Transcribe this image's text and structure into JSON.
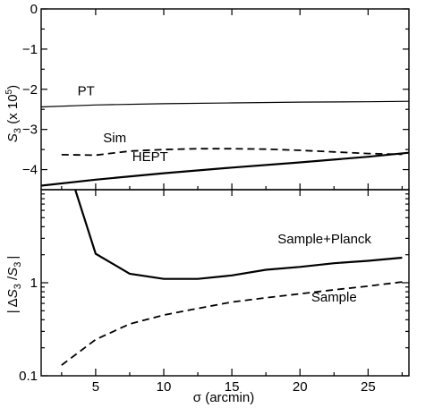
{
  "chart_data": [
    {
      "type": "line",
      "xlim": [
        1,
        28
      ],
      "ylim": [
        -4.5,
        0
      ],
      "ylabel": "S3 (x 10^5)",
      "ylabel_main": "S",
      "ylabel_sub": "3",
      "ylabel_rest": " (x 10",
      "ylabel_exp": "5",
      "ylabel_close": ")",
      "yticks": [
        0,
        -1,
        -2,
        -3,
        -4
      ],
      "ytick_labels": [
        "0",
        "−1",
        "−2",
        "−3",
        "−4"
      ],
      "series": [
        {
          "name": "PT",
          "style": "thin-solid",
          "x": [
            1,
            5,
            10,
            15,
            20,
            25,
            28
          ],
          "y": [
            -2.44,
            -2.39,
            -2.36,
            -2.34,
            -2.32,
            -2.31,
            -2.3
          ]
        },
        {
          "name": "Sim",
          "style": "dashed",
          "x": [
            2.5,
            5,
            7.5,
            10,
            12.5,
            15,
            17.5,
            20,
            22.5,
            25,
            27.5
          ],
          "y": [
            -3.63,
            -3.64,
            -3.54,
            -3.5,
            -3.48,
            -3.48,
            -3.49,
            -3.52,
            -3.56,
            -3.6,
            -3.62
          ]
        },
        {
          "name": "HEPT",
          "style": "thick-solid",
          "x": [
            1,
            5,
            10,
            15,
            20,
            25,
            28
          ],
          "y": [
            -4.4,
            -4.25,
            -4.09,
            -3.95,
            -3.82,
            -3.68,
            -3.58
          ]
        }
      ]
    },
    {
      "type": "line",
      "xlim": [
        1,
        28
      ],
      "ylim": [
        0.1,
        10
      ],
      "yscale": "log",
      "xlabel": "σ (arcmin)",
      "ylabel": "|ΔS3 /S3|",
      "xticks": [
        5,
        10,
        15,
        20,
        25
      ],
      "xtick_labels": [
        "5",
        "10",
        "15",
        "20",
        "25"
      ],
      "yticks": [
        0.1,
        1
      ],
      "ytick_labels": [
        "0.1",
        "1"
      ],
      "series": [
        {
          "name": "Sample+Planck",
          "style": "thick-solid",
          "x": [
            3.5,
            5,
            7.5,
            10,
            12.5,
            15,
            17.5,
            20,
            22.5,
            25,
            27.5
          ],
          "y": [
            10.0,
            2.05,
            1.25,
            1.1,
            1.1,
            1.2,
            1.38,
            1.48,
            1.62,
            1.72,
            1.86
          ]
        },
        {
          "name": "Sample",
          "style": "dashed",
          "x": [
            2.5,
            5,
            7.5,
            10,
            12.5,
            15,
            17.5,
            20,
            22.5,
            25,
            27.5
          ],
          "y": [
            0.13,
            0.245,
            0.36,
            0.45,
            0.53,
            0.62,
            0.69,
            0.76,
            0.84,
            0.92,
            1.02
          ]
        }
      ]
    }
  ]
}
